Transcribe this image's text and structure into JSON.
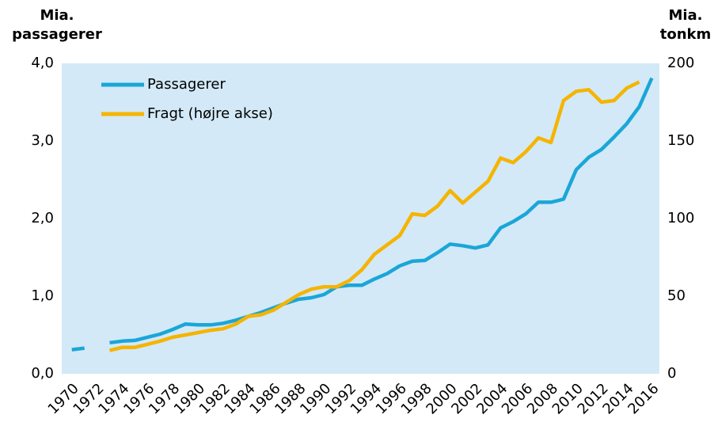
{
  "chart_data": {
    "type": "line",
    "y_label": "Mia. passagerer",
    "y2_label": "Mia. tonkm",
    "x": [
      1970,
      1971,
      1972,
      1973,
      1974,
      1975,
      1976,
      1977,
      1978,
      1979,
      1980,
      1981,
      1982,
      1983,
      1984,
      1985,
      1986,
      1987,
      1988,
      1989,
      1990,
      1991,
      1992,
      1993,
      1994,
      1995,
      1996,
      1997,
      1998,
      1999,
      2000,
      2001,
      2002,
      2003,
      2004,
      2005,
      2006,
      2007,
      2008,
      2009,
      2010,
      2011,
      2012,
      2013,
      2014,
      2015,
      2016
    ],
    "series": [
      {
        "name": "Passagerer",
        "color": "#1aa6d8",
        "values": [
          0.31,
          0.33,
          null,
          0.4,
          0.42,
          0.43,
          0.47,
          0.51,
          0.57,
          0.64,
          0.63,
          0.63,
          0.65,
          0.69,
          0.74,
          0.79,
          0.85,
          0.91,
          0.96,
          0.98,
          1.02,
          1.12,
          1.14,
          1.14,
          1.22,
          1.29,
          1.39,
          1.45,
          1.46,
          1.56,
          1.67,
          1.65,
          1.62,
          1.66,
          1.88,
          1.96,
          2.06,
          2.21,
          2.21,
          2.25,
          2.63,
          2.79,
          2.89,
          3.05,
          3.22,
          3.44,
          3.81
        ]
      },
      {
        "name": "Fragt (højre akse)",
        "color": "#f5b400",
        "axis": "y2",
        "values": [
          null,
          null,
          null,
          15,
          17,
          17,
          19,
          21,
          23.5,
          25,
          26.5,
          28,
          29,
          32,
          37,
          38,
          41,
          46,
          51,
          54.5,
          56,
          56,
          60,
          67,
          77,
          83,
          89,
          103,
          102,
          108,
          118,
          110,
          117,
          124,
          139,
          136,
          143,
          152,
          149,
          176,
          182,
          183,
          175,
          176,
          184,
          188,
          null
        ]
      }
    ],
    "xlim": [
      1969.2,
      2016.6
    ],
    "xticks": [
      1970,
      1972,
      1974,
      1976,
      1978,
      1980,
      1982,
      1984,
      1986,
      1988,
      1990,
      1992,
      1994,
      1996,
      1998,
      2000,
      2002,
      2004,
      2006,
      2008,
      2010,
      2012,
      2014,
      2016
    ],
    "ylim": [
      0,
      4
    ],
    "yticks": [
      {
        "value": 0,
        "label": "0,0"
      },
      {
        "value": 1,
        "label": "1,0"
      },
      {
        "value": 2,
        "label": "2,0"
      },
      {
        "value": 3,
        "label": "3,0"
      },
      {
        "value": 4,
        "label": "4,0"
      }
    ],
    "y2lim": [
      0,
      200
    ],
    "y2ticks": [
      0,
      50,
      100,
      150,
      200
    ],
    "background": "#d3e9f7",
    "legend": "upper left"
  }
}
